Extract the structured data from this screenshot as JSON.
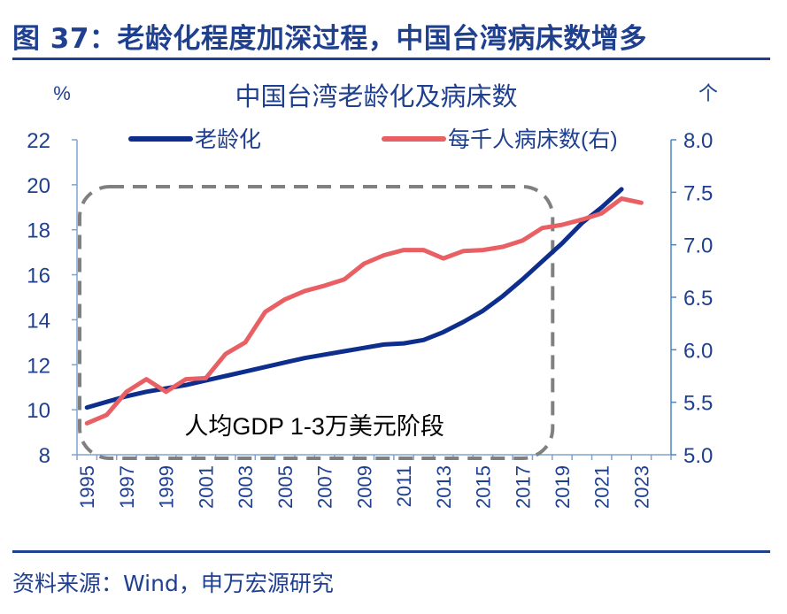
{
  "figure": {
    "title": "图 37：老龄化程度加深过程，中国台湾病床数增多",
    "source": "资料来源：Wind，申万宏源研究"
  },
  "chart_data": {
    "type": "line",
    "title": "中国台湾老龄化及病床数",
    "y_left_unit": "%",
    "y_right_unit": "个",
    "y_left_lim": [
      8,
      22
    ],
    "y_left_ticks": [
      8,
      10,
      12,
      14,
      16,
      18,
      20,
      22
    ],
    "y_right_lim": [
      5.0,
      8.0
    ],
    "y_right_ticks": [
      "5.0",
      "5.5",
      "6.0",
      "6.5",
      "7.0",
      "7.5",
      "8.0"
    ],
    "x_ticks": [
      "1995",
      "1997",
      "1999",
      "2001",
      "2003",
      "2005",
      "2007",
      "2009",
      "2011",
      "2013",
      "2015",
      "2017",
      "2019",
      "2021",
      "2023"
    ],
    "legend_position": "top",
    "annotation": "人均GDP 1-3万美元阶段",
    "annotation_range": [
      1995,
      2019
    ],
    "colors": {
      "aging": "#0d2e8c",
      "beds": "#e96064",
      "right_axis": "#4a86c5",
      "box": "#808080"
    },
    "series": [
      {
        "name": "老龄化",
        "axis": "left",
        "x": [
          1995,
          1996,
          1997,
          1998,
          1999,
          2000,
          2001,
          2002,
          2003,
          2004,
          2005,
          2006,
          2007,
          2008,
          2009,
          2010,
          2011,
          2012,
          2013,
          2014,
          2015,
          2016,
          2017,
          2018,
          2019,
          2020,
          2021,
          2022
        ],
        "y": [
          10.1,
          10.35,
          10.6,
          10.8,
          10.95,
          11.1,
          11.3,
          11.5,
          11.7,
          11.9,
          12.1,
          12.3,
          12.45,
          12.6,
          12.75,
          12.9,
          12.95,
          13.1,
          13.45,
          13.9,
          14.4,
          15.05,
          15.8,
          16.6,
          17.4,
          18.3,
          19.0,
          19.8
        ]
      },
      {
        "name": "每千人病床数(右)",
        "axis": "right",
        "x": [
          1995,
          1996,
          1997,
          1998,
          1999,
          2000,
          2001,
          2002,
          2003,
          2004,
          2005,
          2006,
          2007,
          2008,
          2009,
          2010,
          2011,
          2012,
          2013,
          2014,
          2015,
          2016,
          2017,
          2018,
          2019,
          2020,
          2021,
          2022,
          2023
        ],
        "y": [
          5.3,
          5.38,
          5.6,
          5.72,
          5.6,
          5.72,
          5.73,
          5.96,
          6.07,
          6.36,
          6.48,
          6.56,
          6.61,
          6.67,
          6.82,
          6.9,
          6.95,
          6.95,
          6.87,
          6.94,
          6.95,
          6.98,
          7.04,
          7.16,
          7.19,
          7.24,
          7.3,
          7.44,
          7.4
        ]
      }
    ]
  }
}
